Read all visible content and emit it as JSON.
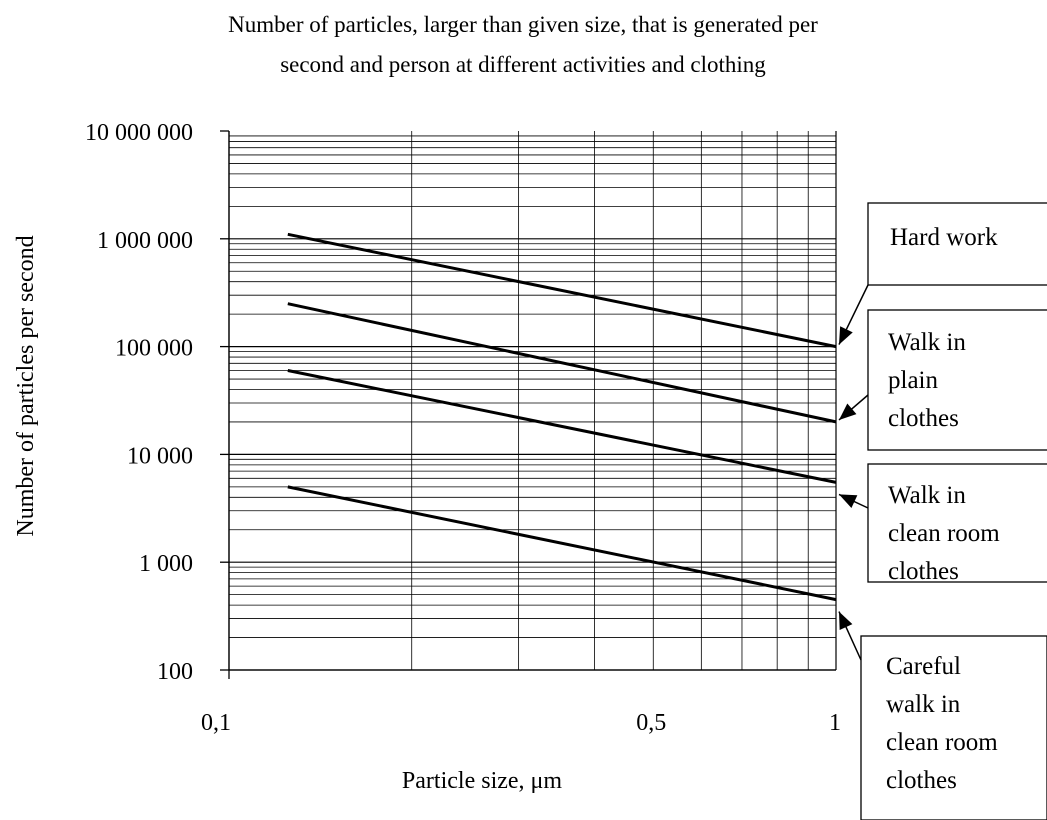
{
  "chart_data": {
    "type": "line",
    "title_lines": [
      "Number of particles, larger than given size, that is generated per",
      "second and person at different activities and clothing"
    ],
    "xlabel": "Particle size, μm",
    "ylabel": "Number of particles per second",
    "x_scale": "log",
    "y_scale": "log",
    "xlim": [
      0.1,
      1
    ],
    "ylim": [
      100,
      10000000
    ],
    "x_tick_labels": [
      {
        "value": 0.1,
        "label": "0,1"
      },
      {
        "value": 0.5,
        "label": "0,5"
      },
      {
        "value": 1,
        "label": "1"
      }
    ],
    "y_tick_labels": [
      {
        "value": 100,
        "label": "100"
      },
      {
        "value": 1000,
        "label": "1 000"
      },
      {
        "value": 10000,
        "label": "10 000"
      },
      {
        "value": 100000,
        "label": "100 000"
      },
      {
        "value": 1000000,
        "label": "1 000 000"
      },
      {
        "value": 10000000,
        "label": "10 000 000"
      }
    ],
    "grid": true,
    "series": [
      {
        "name": "Hard work",
        "x": [
          0.125,
          1
        ],
        "y": [
          1100000,
          100000
        ]
      },
      {
        "name": "Walk in plain clothes",
        "x": [
          0.125,
          1
        ],
        "y": [
          250000,
          20000
        ]
      },
      {
        "name": "Walk in clean room clothes",
        "x": [
          0.125,
          1
        ],
        "y": [
          60000,
          5500
        ]
      },
      {
        "name": "Careful walk in clean room clothes",
        "x": [
          0.125,
          1
        ],
        "y": [
          5000,
          450
        ]
      }
    ],
    "annotations": [
      {
        "series": 0,
        "lines": [
          "Hard work"
        ]
      },
      {
        "series": 1,
        "lines": [
          "Walk in",
          "plain",
          "clothes"
        ]
      },
      {
        "series": 2,
        "lines": [
          "Walk in",
          "clean room",
          "clothes"
        ]
      },
      {
        "series": 3,
        "lines": [
          "Careful",
          "walk in",
          "clean room",
          "clothes"
        ]
      }
    ],
    "colors": {
      "line": "#000000",
      "grid": "#000000",
      "background": "#ffffff"
    }
  }
}
